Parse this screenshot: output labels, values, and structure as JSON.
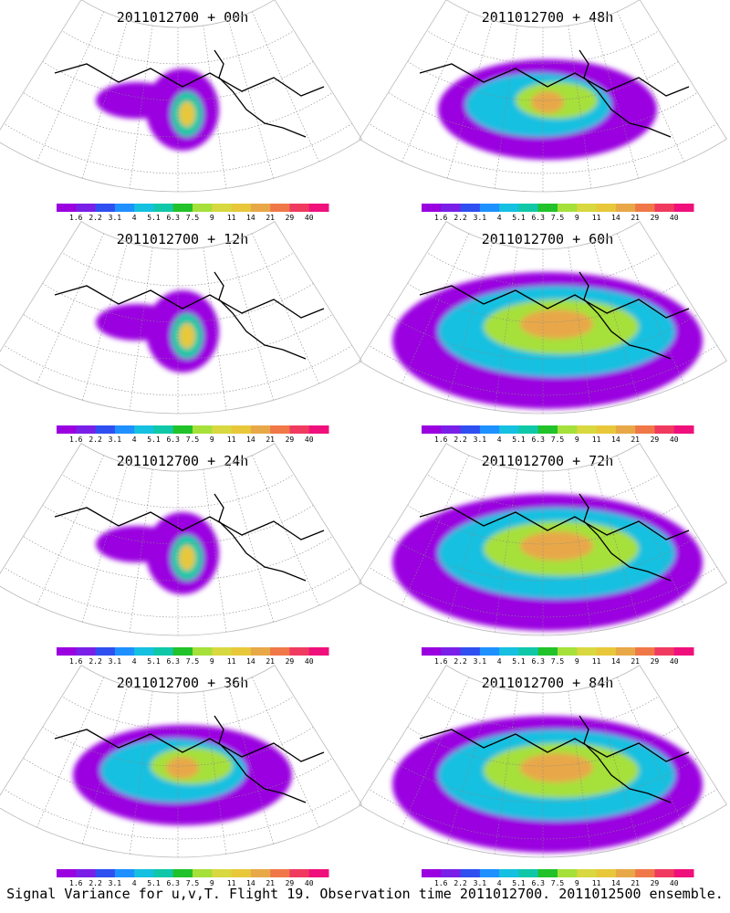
{
  "panels": [
    {
      "title": "2011012700 + 00h",
      "lead": "00h",
      "coverage": "sparse"
    },
    {
      "title": "2011012700 + 48h",
      "lead": "48h",
      "coverage": "moderate"
    },
    {
      "title": "2011012700 + 12h",
      "lead": "12h",
      "coverage": "sparse"
    },
    {
      "title": "2011012700 + 60h",
      "lead": "60h",
      "coverage": "wide"
    },
    {
      "title": "2011012700 + 24h",
      "lead": "24h",
      "coverage": "sparse"
    },
    {
      "title": "2011012700 + 72h",
      "lead": "72h",
      "coverage": "wide"
    },
    {
      "title": "2011012700 + 36h",
      "lead": "36h",
      "coverage": "moderate"
    },
    {
      "title": "2011012700 + 84h",
      "lead": "84h",
      "coverage": "wide"
    }
  ],
  "colorbar": {
    "labels": [
      "1.6",
      "2.2",
      "3.1",
      "4",
      "5.1",
      "6.3",
      "7.5",
      "9",
      "11",
      "14",
      "21",
      "29",
      "40"
    ],
    "colors": [
      "#9a00e0",
      "#7a1fe8",
      "#2f4ff0",
      "#1e90ff",
      "#15c0e0",
      "#10c8a8",
      "#22c22a",
      "#a6e03a",
      "#d8d840",
      "#e8c83a",
      "#e8a848",
      "#f07848",
      "#f03a60",
      "#f0107c"
    ]
  },
  "footer": "Signal Variance for u,v,T. Flight 19. Observation time 2011012700. 2011012500 ensemble."
}
